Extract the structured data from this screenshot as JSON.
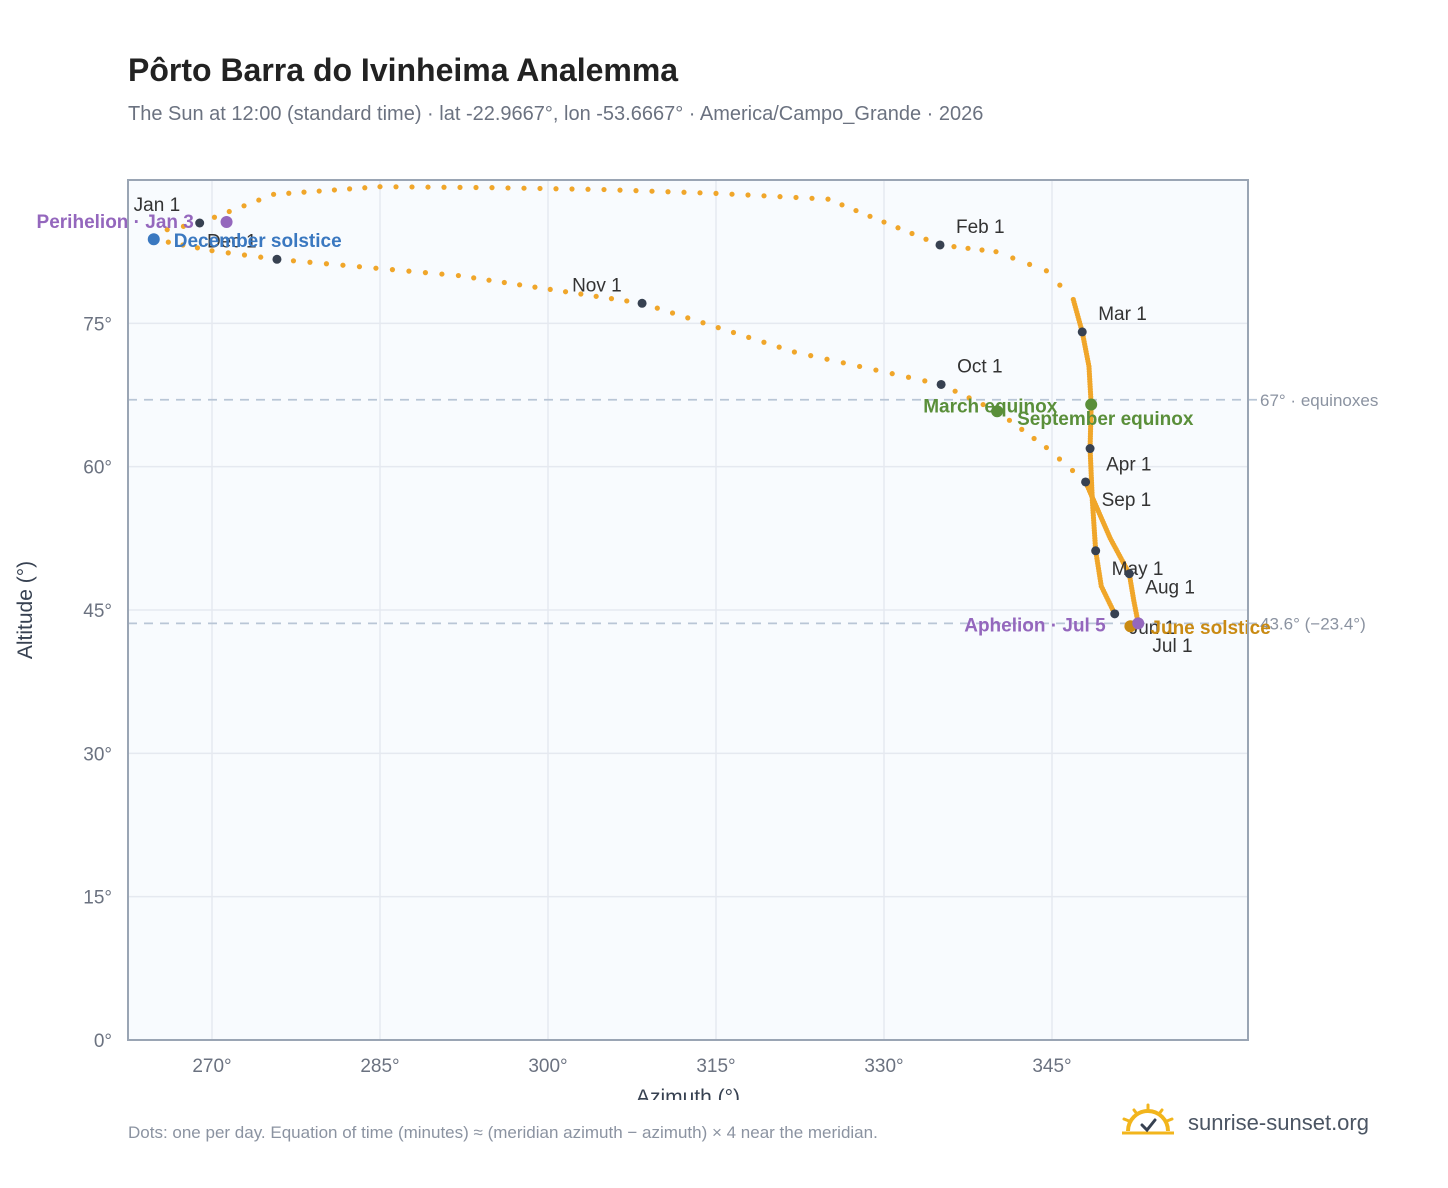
{
  "title": "Pôrto Barra do Ivinheima Analemma",
  "subtitle": "The Sun at 12:00 (standard time) · lat -22.9667°, lon -53.6667° · America/Campo_Grande · 2026",
  "footnote": "Dots: one per day. Equation of time (minutes) ≈ (meridian azimuth − azimuth) × 4 near the meridian.",
  "brand": "sunrise-sunset.org",
  "colors": {
    "path": "#f0a62a",
    "month_marker": "#374151",
    "equinox": "#5a8f3a",
    "solstice_december": "#3a78c0",
    "solstice_june": "#c98a12",
    "perihelion_aphelion": "#9467bd",
    "grid": "#e5e9f0",
    "plot_bg": "#f8fbfe",
    "frame": "#9aa5b4",
    "refline": "#b9c6d6"
  },
  "chart_data": {
    "type": "scatter",
    "title": "Pôrto Barra do Ivinheima Analemma",
    "xlabel": "Azimuth (°)",
    "ylabel": "Altitude (°)",
    "xlim": [
      262.5,
      362.5
    ],
    "ylim": [
      0,
      90
    ],
    "xticks": [
      270,
      285,
      300,
      315,
      330,
      345
    ],
    "xtick_labels": [
      "270°",
      "285°",
      "300°",
      "315°",
      "330°",
      "345°"
    ],
    "yticks": [
      0,
      15,
      30,
      45,
      60,
      75
    ],
    "ytick_labels": [
      "0°",
      "15°",
      "30°",
      "45°",
      "60°",
      "75°"
    ],
    "grid": true,
    "series": [
      {
        "points": [
          [
            268.9,
            85.5
          ],
          [
            275.5,
            88.5
          ],
          [
            285,
            89.3
          ],
          [
            295,
            89.2
          ],
          [
            305,
            89.0
          ],
          [
            315,
            88.6
          ],
          [
            325,
            88.0
          ],
          [
            335.0,
            83.2
          ],
          [
            340,
            82.5
          ],
          [
            344.5,
            80.5
          ],
          [
            346.9,
            77.5
          ],
          [
            347.7,
            74.1
          ],
          [
            348.3,
            70.5
          ],
          [
            348.5,
            66.5
          ],
          [
            348.4,
            61.9
          ],
          [
            348.6,
            56.5
          ],
          [
            348.9,
            51.2
          ],
          [
            349.4,
            47.5
          ],
          [
            350.6,
            44.6
          ],
          [
            352.0,
            43.3
          ],
          [
            352.7,
            43.6
          ],
          [
            352.3,
            46
          ],
          [
            351.9,
            48.8
          ],
          [
            350.2,
            52.5
          ],
          [
            348.0,
            58.4
          ],
          [
            344.5,
            62.0
          ],
          [
            340.1,
            65.8
          ],
          [
            335.1,
            68.6
          ],
          [
            322,
            72.0
          ],
          [
            308.4,
            77.1
          ],
          [
            292,
            80.0
          ],
          [
            275.8,
            81.7
          ],
          [
            270,
            82.6
          ],
          [
            264.8,
            83.8
          ],
          [
            266,
            84.8
          ],
          [
            268.9,
            85.5
          ]
        ]
      }
    ],
    "month_markers": [
      {
        "label": "Jan 1",
        "x": 268.9,
        "y": 85.5
      },
      {
        "label": "Feb 1",
        "x": 335.0,
        "y": 83.2
      },
      {
        "label": "Mar 1",
        "x": 347.7,
        "y": 74.1
      },
      {
        "label": "Apr 1",
        "x": 348.4,
        "y": 61.9
      },
      {
        "label": "May 1",
        "x": 348.9,
        "y": 51.2
      },
      {
        "label": "Jun 1",
        "x": 350.6,
        "y": 44.6
      },
      {
        "label": "Jul 1",
        "x": 352.0,
        "y": 43.3
      },
      {
        "label": "Aug 1",
        "x": 351.9,
        "y": 48.8
      },
      {
        "label": "Sep 1",
        "x": 348.0,
        "y": 58.4
      },
      {
        "label": "Oct 1",
        "x": 335.1,
        "y": 68.6
      },
      {
        "label": "Nov 1",
        "x": 308.4,
        "y": 77.1
      },
      {
        "label": "Dec 1",
        "x": 275.8,
        "y": 81.7
      }
    ],
    "events": [
      {
        "label": "March equinox",
        "x": 348.5,
        "y": 66.5,
        "kind": "equinox"
      },
      {
        "label": "September equinox",
        "x": 340.1,
        "y": 65.8,
        "kind": "equinox"
      },
      {
        "label": "June solstice",
        "x": 352.0,
        "y": 43.3,
        "kind": "solstice_june"
      },
      {
        "label": "December solstice",
        "x": 264.8,
        "y": 83.8,
        "kind": "solstice_december"
      },
      {
        "label": "Perihelion · Jan 3",
        "x": 271.3,
        "y": 85.6,
        "kind": "perihelion_aphelion"
      },
      {
        "label": "Aphelion · Jul 5",
        "x": 352.7,
        "y": 43.6,
        "kind": "perihelion_aphelion"
      }
    ],
    "reference_lines": [
      {
        "y": 67.0,
        "label": "67° · equinoxes"
      },
      {
        "y": 43.6,
        "label": "43.6° (−23.4°)"
      }
    ]
  }
}
